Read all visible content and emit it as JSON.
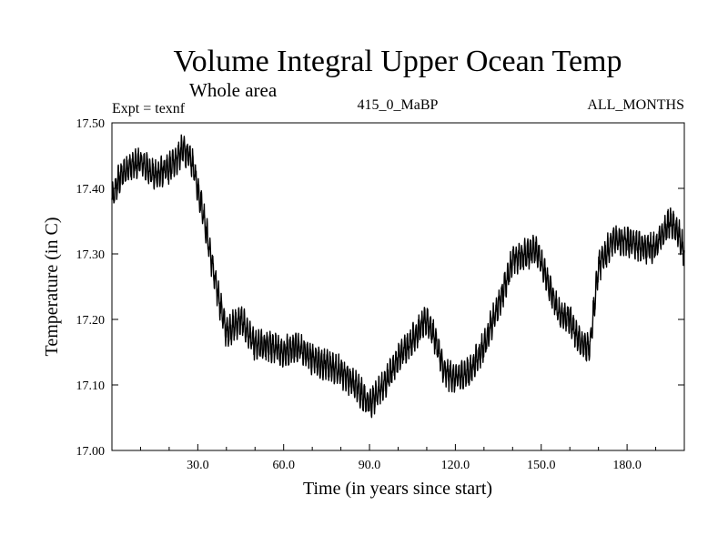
{
  "chart_data": {
    "type": "line",
    "title": "Volume Integral Upper Ocean Temp",
    "subtitle": "Whole area",
    "expt_label": "Expt = texnf",
    "run_label": "415_0_MaBP",
    "months_label": "ALL_MONTHS",
    "xlabel": "Time (in years since start)",
    "ylabel": "Temperature (in C)",
    "xlim": [
      0,
      200
    ],
    "ylim": [
      17.0,
      17.5
    ],
    "x_ticks": [
      30,
      60,
      90,
      120,
      150,
      180
    ],
    "x_tick_labels": [
      "30.0",
      "60.0",
      "90.0",
      "120.0",
      "150.0",
      "180.0"
    ],
    "y_ticks": [
      17.0,
      17.1,
      17.2,
      17.3,
      17.4,
      17.5
    ],
    "y_tick_labels": [
      "17.00",
      "17.10",
      "17.20",
      "17.30",
      "17.40",
      "17.50"
    ],
    "grid": false,
    "series": [
      {
        "name": "Volume integral upper ocean temperature",
        "noise_amplitude": 0.018,
        "x": [
          0,
          2,
          5,
          10,
          15,
          20,
          25,
          28,
          32,
          36,
          40,
          45,
          50,
          55,
          60,
          65,
          70,
          75,
          80,
          85,
          90,
          95,
          100,
          105,
          110,
          113,
          116,
          120,
          125,
          130,
          135,
          140,
          145,
          148,
          152,
          156,
          160,
          164,
          167,
          170,
          175,
          180,
          185,
          190,
          195,
          198,
          200
        ],
        "values": [
          17.38,
          17.41,
          17.43,
          17.44,
          17.42,
          17.43,
          17.46,
          17.44,
          17.36,
          17.26,
          17.18,
          17.2,
          17.16,
          17.16,
          17.15,
          17.16,
          17.14,
          17.13,
          17.12,
          17.1,
          17.07,
          17.1,
          17.14,
          17.17,
          17.2,
          17.17,
          17.12,
          17.11,
          17.12,
          17.16,
          17.22,
          17.29,
          17.3,
          17.31,
          17.26,
          17.21,
          17.2,
          17.16,
          17.16,
          17.28,
          17.32,
          17.32,
          17.31,
          17.31,
          17.35,
          17.33,
          17.3
        ]
      }
    ]
  }
}
